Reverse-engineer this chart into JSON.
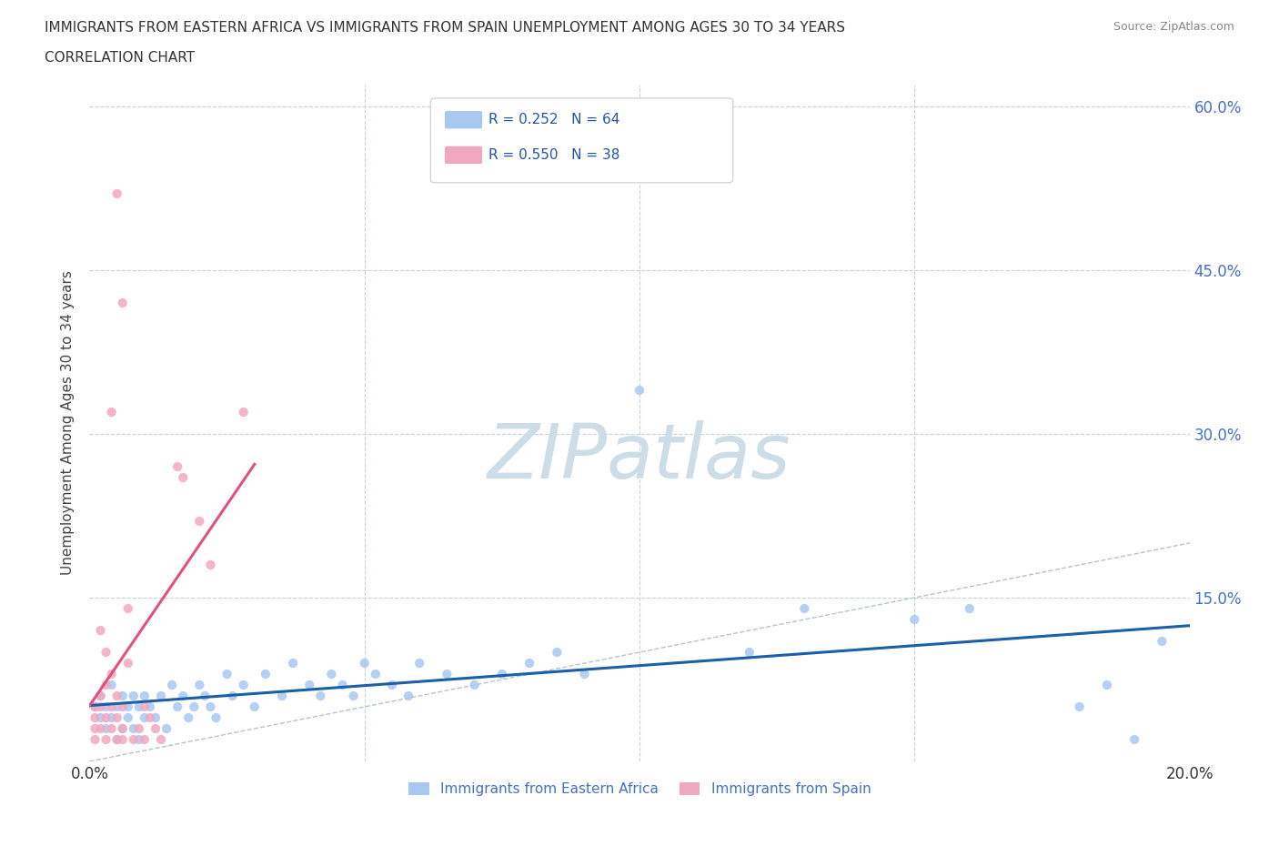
{
  "title_line1": "IMMIGRANTS FROM EASTERN AFRICA VS IMMIGRANTS FROM SPAIN UNEMPLOYMENT AMONG AGES 30 TO 34 YEARS",
  "title_line2": "CORRELATION CHART",
  "source_text": "Source: ZipAtlas.com",
  "ylabel": "Unemployment Among Ages 30 to 34 years",
  "xlim": [
    0.0,
    0.2
  ],
  "ylim": [
    0.0,
    0.62
  ],
  "blue_R": 0.252,
  "blue_N": 64,
  "pink_R": 0.55,
  "pink_N": 38,
  "blue_color": "#a8c8f0",
  "pink_color": "#f0a8c0",
  "blue_line_color": "#1a5fa8",
  "pink_line_color": "#e05080",
  "watermark": "ZIPatlas",
  "watermark_color": "#ccdde8",
  "background_color": "#ffffff",
  "grid_color": "#c8d4dc",
  "legend_blue_label": "Immigrants from Eastern Africa",
  "legend_pink_label": "Immigrants from Spain",
  "blue_scatter": [
    [
      0.001,
      0.05
    ],
    [
      0.002,
      0.04
    ],
    [
      0.002,
      0.06
    ],
    [
      0.003,
      0.03
    ],
    [
      0.003,
      0.05
    ],
    [
      0.004,
      0.04
    ],
    [
      0.004,
      0.07
    ],
    [
      0.005,
      0.02
    ],
    [
      0.005,
      0.05
    ],
    [
      0.006,
      0.06
    ],
    [
      0.006,
      0.03
    ],
    [
      0.007,
      0.05
    ],
    [
      0.007,
      0.04
    ],
    [
      0.008,
      0.06
    ],
    [
      0.008,
      0.03
    ],
    [
      0.009,
      0.05
    ],
    [
      0.009,
      0.02
    ],
    [
      0.01,
      0.04
    ],
    [
      0.01,
      0.06
    ],
    [
      0.011,
      0.05
    ],
    [
      0.012,
      0.04
    ],
    [
      0.013,
      0.06
    ],
    [
      0.014,
      0.03
    ],
    [
      0.015,
      0.07
    ],
    [
      0.016,
      0.05
    ],
    [
      0.017,
      0.06
    ],
    [
      0.018,
      0.04
    ],
    [
      0.019,
      0.05
    ],
    [
      0.02,
      0.07
    ],
    [
      0.021,
      0.06
    ],
    [
      0.022,
      0.05
    ],
    [
      0.023,
      0.04
    ],
    [
      0.025,
      0.08
    ],
    [
      0.026,
      0.06
    ],
    [
      0.028,
      0.07
    ],
    [
      0.03,
      0.05
    ],
    [
      0.032,
      0.08
    ],
    [
      0.035,
      0.06
    ],
    [
      0.037,
      0.09
    ],
    [
      0.04,
      0.07
    ],
    [
      0.042,
      0.06
    ],
    [
      0.044,
      0.08
    ],
    [
      0.046,
      0.07
    ],
    [
      0.048,
      0.06
    ],
    [
      0.05,
      0.09
    ],
    [
      0.052,
      0.08
    ],
    [
      0.055,
      0.07
    ],
    [
      0.058,
      0.06
    ],
    [
      0.06,
      0.09
    ],
    [
      0.065,
      0.08
    ],
    [
      0.07,
      0.07
    ],
    [
      0.075,
      0.08
    ],
    [
      0.08,
      0.09
    ],
    [
      0.085,
      0.1
    ],
    [
      0.09,
      0.08
    ],
    [
      0.1,
      0.34
    ],
    [
      0.12,
      0.1
    ],
    [
      0.13,
      0.14
    ],
    [
      0.15,
      0.13
    ],
    [
      0.16,
      0.14
    ],
    [
      0.18,
      0.05
    ],
    [
      0.185,
      0.07
    ],
    [
      0.19,
      0.02
    ],
    [
      0.195,
      0.11
    ]
  ],
  "pink_scatter": [
    [
      0.001,
      0.03
    ],
    [
      0.001,
      0.05
    ],
    [
      0.001,
      0.02
    ],
    [
      0.001,
      0.04
    ],
    [
      0.002,
      0.06
    ],
    [
      0.002,
      0.12
    ],
    [
      0.002,
      0.03
    ],
    [
      0.002,
      0.05
    ],
    [
      0.003,
      0.07
    ],
    [
      0.003,
      0.1
    ],
    [
      0.003,
      0.04
    ],
    [
      0.003,
      0.02
    ],
    [
      0.004,
      0.08
    ],
    [
      0.004,
      0.03
    ],
    [
      0.004,
      0.05
    ],
    [
      0.005,
      0.06
    ],
    [
      0.005,
      0.02
    ],
    [
      0.005,
      0.04
    ],
    [
      0.006,
      0.03
    ],
    [
      0.006,
      0.05
    ],
    [
      0.006,
      0.02
    ],
    [
      0.007,
      0.14
    ],
    [
      0.007,
      0.09
    ],
    [
      0.008,
      0.02
    ],
    [
      0.009,
      0.03
    ],
    [
      0.01,
      0.05
    ],
    [
      0.01,
      0.02
    ],
    [
      0.011,
      0.04
    ],
    [
      0.012,
      0.03
    ],
    [
      0.016,
      0.27
    ],
    [
      0.017,
      0.26
    ],
    [
      0.02,
      0.22
    ],
    [
      0.022,
      0.18
    ],
    [
      0.028,
      0.32
    ],
    [
      0.004,
      0.32
    ],
    [
      0.005,
      0.52
    ],
    [
      0.006,
      0.42
    ],
    [
      0.013,
      0.02
    ]
  ]
}
